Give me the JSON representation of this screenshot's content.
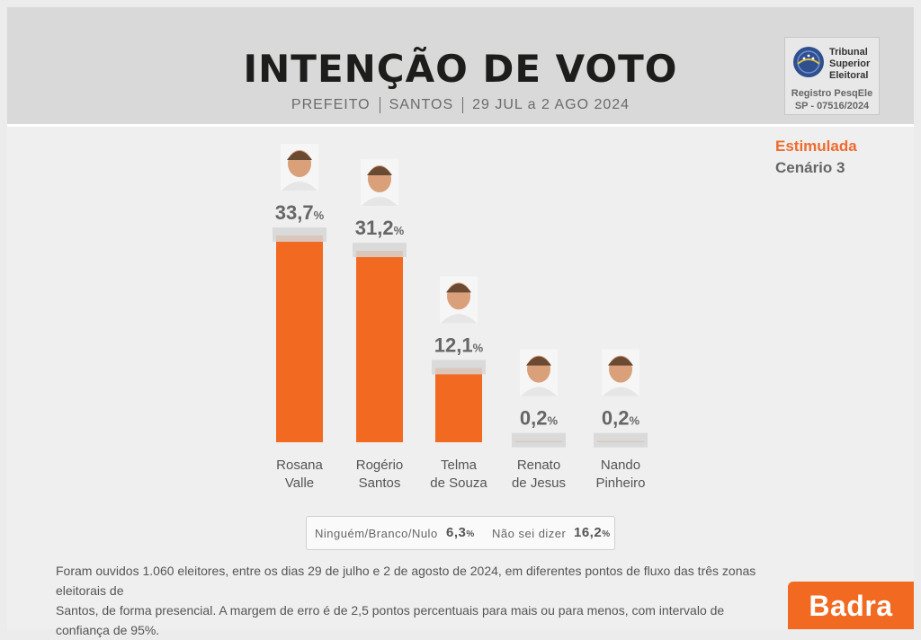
{
  "header": {
    "title": "INTENÇÃO DE VOTO",
    "subtitle": {
      "office": "PREFEITO",
      "city": "SANTOS",
      "period": "29 JUL a 2 AGO 2024"
    }
  },
  "tse": {
    "name_lines": [
      "Tribunal",
      "Superior",
      "Eleitoral"
    ],
    "registry_label": "Registro PesqEle",
    "registry_code": "SP - 07516/2024"
  },
  "scenario": {
    "type": "Estimulada",
    "number": "Cenário 3"
  },
  "chart_data": {
    "type": "bar",
    "title": "",
    "xlabel": "",
    "ylabel": "",
    "ylim": [
      0,
      33.7
    ],
    "categories": [
      [
        "Rosana",
        "Valle"
      ],
      [
        "Rogério",
        "Santos"
      ],
      [
        "Telma",
        "de Souza"
      ],
      [
        "Renato",
        "de Jesus"
      ],
      [
        "Nando",
        "Pinheiro"
      ]
    ],
    "values": [
      33.7,
      31.2,
      12.1,
      0.2,
      0.2
    ],
    "value_labels": [
      "33,7",
      "31,2",
      "12,1",
      "0,2",
      "0,2"
    ],
    "value_suffix": "%",
    "colors": {
      "bar": "#f26a22",
      "cap": "#d6d6d6",
      "label": "#666666"
    }
  },
  "summary": {
    "none_label": "Ninguém/Branco/Nulo",
    "none_value": "6,3",
    "unknown_label": "Não sei dizer",
    "unknown_value": "16,2",
    "suffix": "%"
  },
  "footnote": {
    "line1": "Foram ouvidos 1.060 eleitores, entre os dias 29 de julho e 2 de agosto de 2024, em diferentes pontos de fluxo das três zonas eleitorais de",
    "line2": "Santos, de forma presencial. A margem de erro é de 2,5 pontos percentuais para mais ou para menos, com intervalo de confiança de 95%."
  },
  "brand": "Badra"
}
